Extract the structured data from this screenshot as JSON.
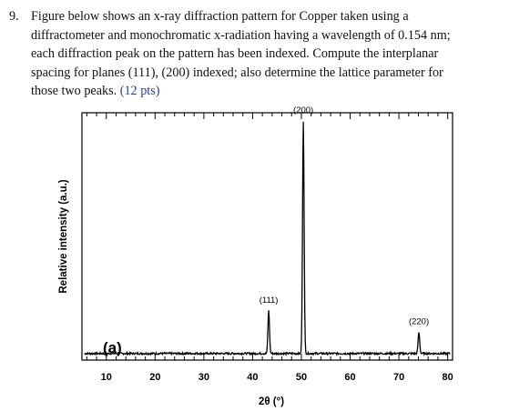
{
  "question": {
    "number": "9.",
    "lines": [
      "Figure below shows an x-ray diffraction pattern for Copper taken using a",
      "diffractometer and monochromatic x-radiation having a wavelength of 0.154 nm;",
      "each diffraction peak on the pattern has been indexed. Compute the interplanar",
      "spacing for planes (111), (200) indexed; also determine the lattice parameter for",
      "those two peaks. "
    ],
    "points": "(12 pts)",
    "points_color": "#2b3fa6"
  },
  "chart_data": {
    "type": "line",
    "panel_label": "(a)",
    "xlabel": "2θ (°)",
    "ylabel": "Relative intensity (a.u.)",
    "xlim": [
      5,
      81
    ],
    "ylim": [
      0,
      100
    ],
    "x_ticks": [
      10,
      20,
      30,
      40,
      50,
      60,
      70,
      80
    ],
    "grid": false,
    "line_color": "#000000",
    "background_level": 2,
    "peaks": [
      {
        "label": "(111)",
        "x": 43.3,
        "y": 20
      },
      {
        "label": "(200)",
        "x": 50.4,
        "y": 100
      },
      {
        "label": "(220)",
        "x": 74.1,
        "y": 11
      }
    ]
  }
}
